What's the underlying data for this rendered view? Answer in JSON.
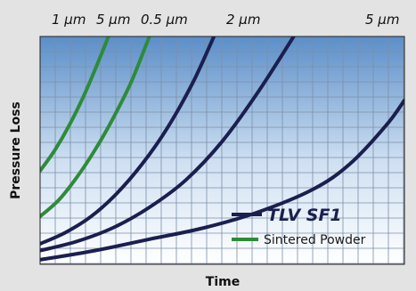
{
  "chart_data": {
    "type": "line",
    "xlabel": "Time",
    "ylabel": "Pressure Loss",
    "xlim": [
      0,
      10
    ],
    "ylim": [
      0,
      10
    ],
    "grid": true,
    "legend_position": "bottom-right",
    "legend": [
      {
        "label": "TLV SF1",
        "color": "#1b1f4f"
      },
      {
        "label": "Sintered Powder",
        "color": "#2e8b3a"
      }
    ],
    "series": [
      {
        "label": "1 μm",
        "group": "Sintered Powder",
        "color": "#2e8b3a",
        "x": [
          0,
          0.4,
          0.8,
          1.2,
          1.6,
          2.0
        ],
        "y": [
          4.1,
          5.0,
          6.1,
          7.4,
          8.9,
          10.5
        ]
      },
      {
        "label": "5 μm",
        "group": "Sintered Powder",
        "color": "#2e8b3a",
        "x": [
          0,
          0.5,
          1.0,
          1.5,
          2.0,
          2.5,
          3.0
        ],
        "y": [
          2.1,
          2.8,
          3.8,
          5.0,
          6.4,
          8.0,
          10.0
        ]
      },
      {
        "label": "0.5 μm",
        "group": "TLV SF1",
        "color": "#1b1f4f",
        "x": [
          0,
          0.7,
          1.4,
          2.1,
          2.8,
          3.5,
          4.2,
          4.8
        ],
        "y": [
          0.9,
          1.4,
          2.1,
          3.1,
          4.4,
          6.0,
          8.0,
          10.1
        ]
      },
      {
        "label": "2 μm",
        "group": "TLV SF1",
        "color": "#1b1f4f",
        "x": [
          0,
          1.0,
          2.0,
          3.0,
          4.0,
          5.0,
          6.0,
          7.0
        ],
        "y": [
          0.6,
          1.0,
          1.6,
          2.5,
          3.7,
          5.4,
          7.6,
          10.1
        ]
      },
      {
        "label": "5 μm",
        "group": "TLV SF1",
        "color": "#1b1f4f",
        "x": [
          0,
          1.5,
          3.0,
          4.5,
          6.0,
          7.5,
          8.5,
          9.5,
          10.0
        ],
        "y": [
          0.2,
          0.6,
          1.1,
          1.6,
          2.3,
          3.3,
          4.4,
          6.1,
          7.2
        ]
      }
    ],
    "top_labels": [
      "1 μm",
      "5 μm",
      "0.5 μm",
      "2 μm",
      "5 μm"
    ]
  },
  "colors": {
    "background": "#e3e3e3",
    "plot_top": "#5b8ec8",
    "plot_bottom": "#ffffff",
    "grid": "#7c8fa8",
    "tlv": "#1b1f4f",
    "sintered": "#2e8b3a"
  }
}
